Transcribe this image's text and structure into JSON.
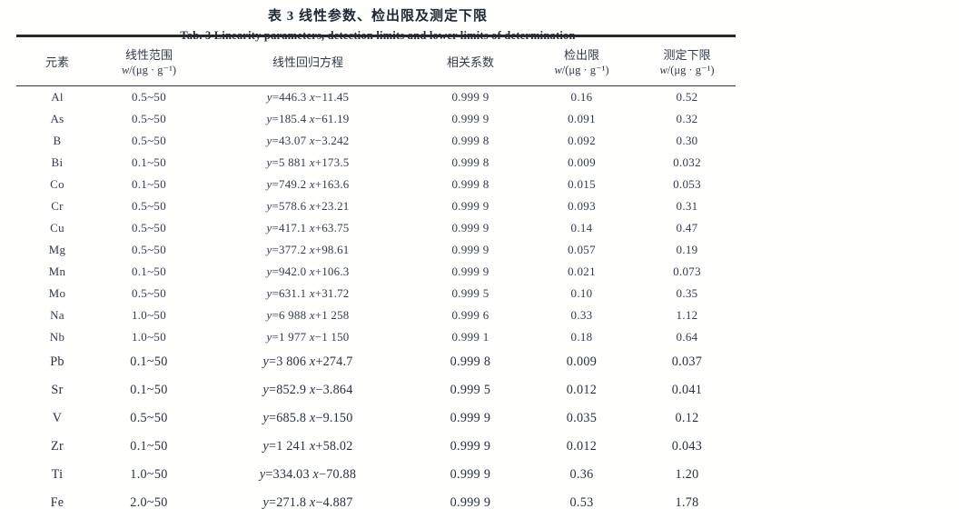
{
  "title": {
    "zh": "表 3  线性参数、检出限及测定下限",
    "en": "Tab. 3  Linearity parameters, detection limits and lower limits of determination"
  },
  "table": {
    "columns": [
      {
        "label": "元素",
        "unit": ""
      },
      {
        "label": "线性范围",
        "unit": "w/(μg · g⁻¹)"
      },
      {
        "label": "线性回归方程",
        "unit": ""
      },
      {
        "label": "相关系数",
        "unit": ""
      },
      {
        "label": "检出限",
        "unit": "w/(μg · g⁻¹)"
      },
      {
        "label": "测定下限",
        "unit": "w/(μg · g⁻¹)"
      }
    ],
    "rows": [
      {
        "element": "Al",
        "range": "0.5~50",
        "equation": "y=446.3 x−11.45",
        "r": "0.999 9",
        "dl": "0.16",
        "lld": "0.52"
      },
      {
        "element": "As",
        "range": "0.5~50",
        "equation": "y=185.4 x−61.19",
        "r": "0.999 9",
        "dl": "0.091",
        "lld": "0.32"
      },
      {
        "element": "B",
        "range": "0.5~50",
        "equation": "y=43.07 x−3.242",
        "r": "0.999 8",
        "dl": "0.092",
        "lld": "0.30"
      },
      {
        "element": "Bi",
        "range": "0.1~50",
        "equation": "y=5 881 x+173.5",
        "r": "0.999 8",
        "dl": "0.009",
        "lld": "0.032"
      },
      {
        "element": "Co",
        "range": "0.1~50",
        "equation": "y=749.2 x+163.6",
        "r": "0.999 8",
        "dl": "0.015",
        "lld": "0.053"
      },
      {
        "element": "Cr",
        "range": "0.5~50",
        "equation": "y=578.6 x+23.21",
        "r": "0.999 9",
        "dl": "0.093",
        "lld": "0.31"
      },
      {
        "element": "Cu",
        "range": "0.5~50",
        "equation": "y=417.1 x+63.75",
        "r": "0.999 9",
        "dl": "0.14",
        "lld": "0.47"
      },
      {
        "element": "Mg",
        "range": "0.5~50",
        "equation": "y=377.2 x+98.61",
        "r": "0.999 9",
        "dl": "0.057",
        "lld": "0.19"
      },
      {
        "element": "Mn",
        "range": "0.1~50",
        "equation": "y=942.0 x+106.3",
        "r": "0.999 9",
        "dl": "0.021",
        "lld": "0.073"
      },
      {
        "element": "Mo",
        "range": "0.5~50",
        "equation": "y=631.1 x+31.72",
        "r": "0.999 5",
        "dl": "0.10",
        "lld": "0.35"
      },
      {
        "element": "Na",
        "range": "1.0~50",
        "equation": "y=6 988 x+1 258",
        "r": "0.999 6",
        "dl": "0.33",
        "lld": "1.12"
      },
      {
        "element": "Nb",
        "range": "1.0~50",
        "equation": "y=1 977 x−1 150",
        "r": "0.999 1",
        "dl": "0.18",
        "lld": "0.64"
      },
      {
        "element": "Pb",
        "range": "0.1~50",
        "equation": "y=3 806 x+274.7",
        "r": "0.999 8",
        "dl": "0.009",
        "lld": "0.037"
      },
      {
        "element": "Sr",
        "range": "0.1~50",
        "equation": "y=852.9 x−3.864",
        "r": "0.999 5",
        "dl": "0.012",
        "lld": "0.041"
      },
      {
        "element": "V",
        "range": "0.5~50",
        "equation": "y=685.8 x−9.150",
        "r": "0.999 9",
        "dl": "0.035",
        "lld": "0.12"
      },
      {
        "element": "Zr",
        "range": "0.1~50",
        "equation": "y=1 241 x+58.02",
        "r": "0.999 9",
        "dl": "0.012",
        "lld": "0.043"
      },
      {
        "element": "Ti",
        "range": "1.0~50",
        "equation": "y=334.03 x−70.88",
        "r": "0.999 9",
        "dl": "0.36",
        "lld": "1.20"
      },
      {
        "element": "Fe",
        "range": "2.0~50",
        "equation": "y=271.8 x−4.887",
        "r": "0.999 9",
        "dl": "0.53",
        "lld": "1.78"
      }
    ]
  },
  "colors": {
    "text": "#2e3a48",
    "rule": "#26282a",
    "background": "#fffffe"
  }
}
